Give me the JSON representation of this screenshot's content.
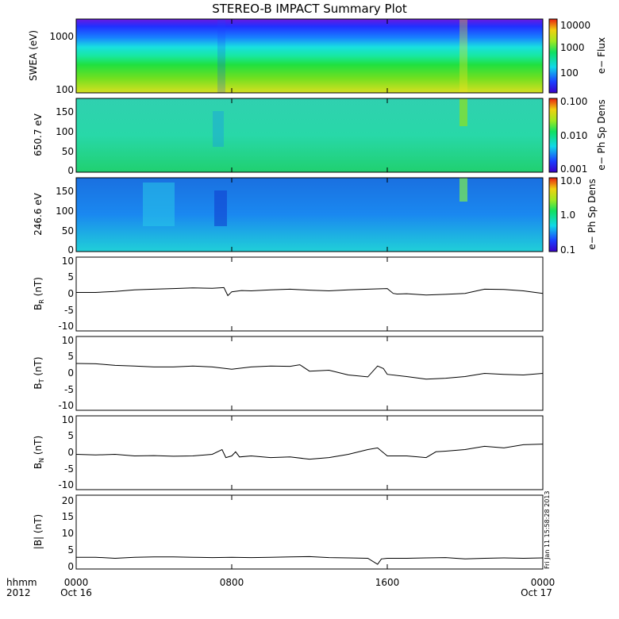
{
  "title": "STEREO-B IMPACT Summary Plot",
  "colors": {
    "background": "#ffffff",
    "line": "#000000"
  },
  "chart_data": [
    {
      "type": "heatmap",
      "ylabel": "SWEA (eV)",
      "ytick_labels": [
        "1000",
        "100"
      ],
      "ylim": [
        90,
        2000
      ],
      "yscale": "log",
      "colorbar": {
        "label": "e− Flux",
        "tick_labels": [
          "10000",
          "1000",
          "100"
        ],
        "range": [
          30,
          10000
        ],
        "scale": "log"
      }
    },
    {
      "type": "heatmap",
      "ylabel": "650.7 eV",
      "ytick_labels": [
        "150",
        "100",
        "50",
        "0"
      ],
      "ylim": [
        -5,
        180
      ],
      "colorbar": {
        "label": "e− Ph Sp Dens",
        "tick_labels": [
          "0.100",
          "0.010",
          "0.001"
        ],
        "range": [
          0.001,
          0.1
        ],
        "scale": "log"
      }
    },
    {
      "type": "heatmap",
      "ylabel": "246.6 eV",
      "ytick_labels": [
        "150",
        "100",
        "50",
        "0"
      ],
      "ylim": [
        -5,
        180
      ],
      "colorbar": {
        "label": "e− Ph Sp Dens",
        "tick_labels": [
          "10.0",
          "1.0",
          "0.1"
        ],
        "range": [
          0.1,
          10
        ],
        "scale": "log"
      }
    },
    {
      "type": "line",
      "ylabel_main": "B",
      "ylabel_sub": "R",
      "ylabel_unit": " (nT)",
      "ylim": [
        -12,
        11
      ],
      "ytick_labels": [
        "10",
        "5",
        "0",
        "-5",
        "-10"
      ],
      "x_hours": [
        0,
        1,
        2,
        3,
        4,
        5,
        6,
        7,
        7.6,
        7.8,
        8,
        8.5,
        9,
        10,
        11,
        12,
        13,
        14,
        15,
        16,
        16.3,
        16.5,
        17,
        18,
        19,
        20,
        21,
        22,
        23,
        24
      ],
      "values": [
        0,
        0,
        0.3,
        0.8,
        1.0,
        1.2,
        1.4,
        1.3,
        1.5,
        -1.0,
        0.2,
        0.6,
        0.5,
        0.8,
        1.0,
        0.7,
        0.5,
        0.8,
        1.0,
        1.2,
        -0.3,
        -0.5,
        -0.4,
        -0.8,
        -0.6,
        -0.3,
        1.0,
        0.9,
        0.5,
        -0.3
      ]
    },
    {
      "type": "line",
      "ylabel_main": "B",
      "ylabel_sub": "T",
      "ylabel_unit": " (nT)",
      "ylim": [
        -12,
        11
      ],
      "ytick_labels": [
        "10",
        "5",
        "0",
        "-5",
        "-10"
      ],
      "x_hours": [
        0,
        1,
        2,
        3,
        4,
        5,
        6,
        7,
        8,
        9,
        10,
        11,
        11.5,
        12,
        13,
        14,
        15,
        15.5,
        15.8,
        16,
        17,
        18,
        19,
        20,
        21,
        22,
        23,
        24
      ],
      "values": [
        2.6,
        2.5,
        2.0,
        1.8,
        1.5,
        1.5,
        1.8,
        1.5,
        0.8,
        1.5,
        1.8,
        1.7,
        2.2,
        0.2,
        0.5,
        -1.0,
        -1.6,
        1.8,
        1.0,
        -0.8,
        -1.5,
        -2.3,
        -2.0,
        -1.5,
        -0.5,
        -0.8,
        -1.0,
        -0.5
      ]
    },
    {
      "type": "line",
      "ylabel_main": "B",
      "ylabel_sub": "N",
      "ylabel_unit": " (nT)",
      "ylim": [
        -12,
        11
      ],
      "ytick_labels": [
        "10",
        "5",
        "0",
        "-5",
        "-10"
      ],
      "x_hours": [
        0,
        1,
        2,
        3,
        4,
        5,
        6,
        7,
        7.5,
        7.7,
        8,
        8.2,
        8.4,
        9,
        10,
        11,
        12,
        13,
        14,
        15,
        15.5,
        16,
        17,
        18,
        18.5,
        19,
        20,
        21,
        22,
        23,
        24
      ],
      "values": [
        -1.0,
        -1.2,
        -1.0,
        -1.5,
        -1.4,
        -1.6,
        -1.5,
        -1.0,
        0.5,
        -2.0,
        -1.5,
        -0.2,
        -1.8,
        -1.5,
        -2.0,
        -1.8,
        -2.5,
        -2.0,
        -1.0,
        0.5,
        1.0,
        -1.5,
        -1.5,
        -2.0,
        -0.2,
        0.0,
        0.5,
        1.5,
        1.0,
        2.0,
        2.2
      ]
    },
    {
      "type": "line",
      "ylabel": "|B| (nT)",
      "ylim": [
        -1,
        21
      ],
      "ytick_labels": [
        "20",
        "15",
        "10",
        "5",
        "0"
      ],
      "x_hours": [
        0,
        1,
        2,
        3,
        4,
        5,
        6,
        7,
        8,
        9,
        10,
        11,
        12,
        13,
        14,
        15,
        15.5,
        15.7,
        16,
        17,
        18,
        19,
        20,
        21,
        22,
        23,
        24
      ],
      "values": [
        2.5,
        2.5,
        2.2,
        2.5,
        2.6,
        2.6,
        2.5,
        2.4,
        2.5,
        2.4,
        2.5,
        2.6,
        2.7,
        2.4,
        2.3,
        2.2,
        0.4,
        2.0,
        2.2,
        2.2,
        2.3,
        2.4,
        2.0,
        2.2,
        2.3,
        2.2,
        2.3
      ]
    }
  ],
  "xaxis": {
    "row_labels": [
      "hhmm",
      "2012"
    ],
    "ticks": [
      {
        "hours": 0,
        "label": "0000",
        "date": "Oct 16"
      },
      {
        "hours": 8,
        "label": "0800",
        "date": ""
      },
      {
        "hours": 16,
        "label": "1600",
        "date": ""
      },
      {
        "hours": 24,
        "label": "0000",
        "date": "Oct 17"
      }
    ]
  },
  "timestamp": "Fri Jan 11 15:58:28 2013"
}
